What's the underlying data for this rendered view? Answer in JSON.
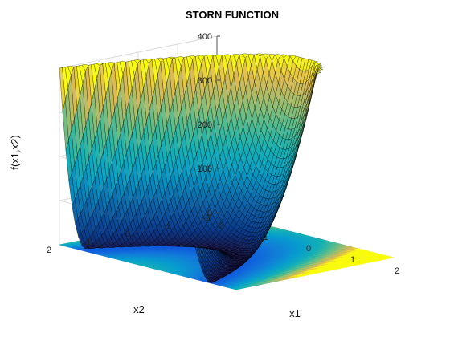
{
  "chart_data": {
    "type": "surface",
    "title": "STORN FUNCTION",
    "xlabel": "x1",
    "ylabel": "x2",
    "zlabel": "f(x1,x2)",
    "function": "100*(x2 - x1^2)^2 + (1 - x1)^2",
    "x_range": [
      -2,
      2
    ],
    "y_range": [
      -2,
      2
    ],
    "z_range": [
      0,
      400
    ],
    "x_ticks": [
      "-2",
      "-1",
      "0",
      "1",
      "2"
    ],
    "y_ticks": [
      "-2",
      "-1",
      "0",
      "1",
      "2"
    ],
    "z_ticks": [
      "0",
      "100",
      "200",
      "300",
      "400"
    ],
    "contour_projection_on_floor": true,
    "grid": true,
    "colormap": "parula",
    "colors": {
      "low": "#352A87",
      "mid": "#0F9BD7",
      "high": "#F9FB0E",
      "edge": "#000000"
    }
  }
}
